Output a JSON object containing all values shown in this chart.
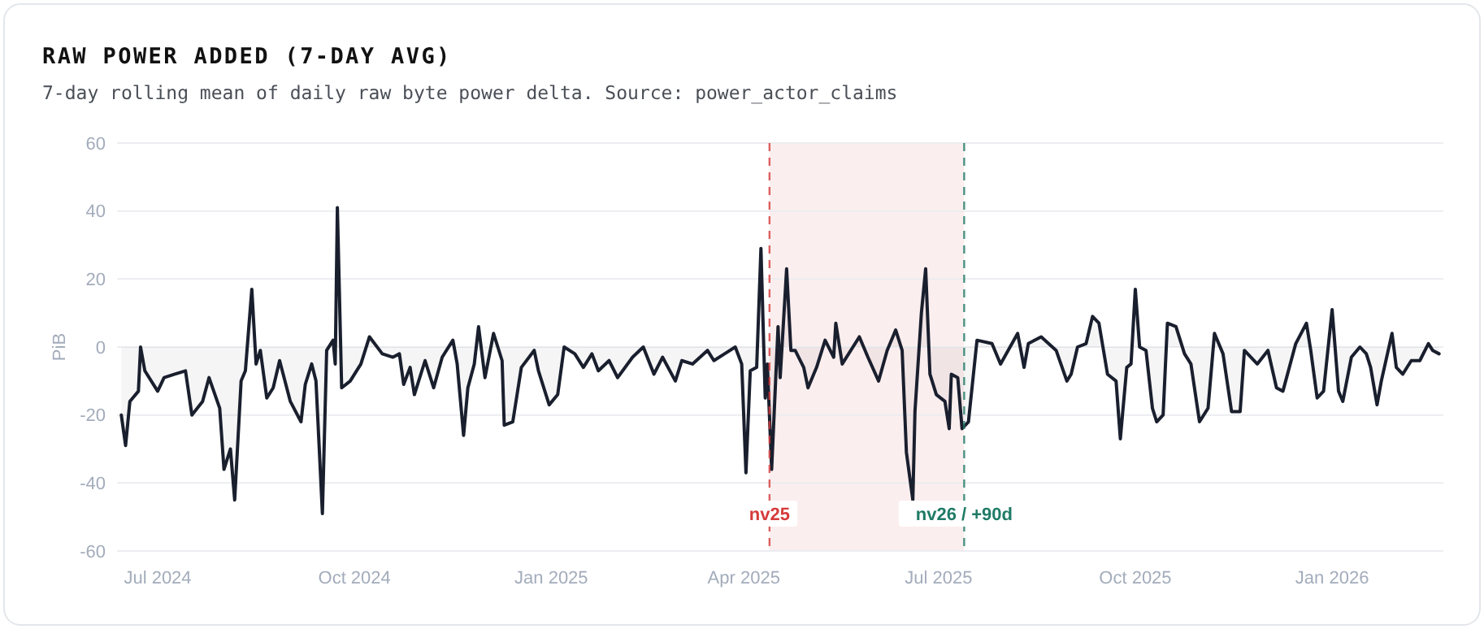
{
  "chart_data": {
    "type": "area",
    "title": "RAW POWER ADDED (7-DAY AVG)",
    "subtitle": "7-day rolling mean of daily raw byte power delta. Source: power_actor_claims",
    "ylabel": "PiB",
    "xlim": [
      "2024-06-12",
      "2026-02-22"
    ],
    "ylim": [
      -60,
      60
    ],
    "yticks": [
      -60,
      -40,
      -20,
      0,
      20,
      40,
      60
    ],
    "xticks": [
      {
        "value": "2024-07-01",
        "label": "Jul 2024"
      },
      {
        "value": "2024-10-01",
        "label": "Oct 2024"
      },
      {
        "value": "2025-01-01",
        "label": "Jan 2025"
      },
      {
        "value": "2025-04-01",
        "label": "Apr 2025"
      },
      {
        "value": "2025-07-01",
        "label": "Jul 2025"
      },
      {
        "value": "2025-10-01",
        "label": "Oct 2025"
      },
      {
        "value": "2026-01-01",
        "label": "Jan 2026"
      }
    ],
    "grid": "y",
    "bands": [
      {
        "axis": "x",
        "from": "2025-04-13",
        "to": "2025-07-13",
        "color": "#fbeeee"
      }
    ],
    "ref_lines": [
      {
        "axis": "x",
        "value": "2025-04-13",
        "label": "nv25",
        "color": "#d63b3b",
        "line_style": "dashed"
      },
      {
        "axis": "x",
        "value": "2025-07-13",
        "label": "nv26 / +90d",
        "color": "#1f7a66",
        "line_style": "dashed"
      }
    ],
    "series": [
      {
        "color": "#1a1f2e",
        "x": [
          "2024-06-14",
          "2024-06-16",
          "2024-06-18",
          "2024-06-22",
          "2024-06-23",
          "2024-06-25",
          "2024-07-01",
          "2024-07-04",
          "2024-07-09",
          "2024-07-14",
          "2024-07-17",
          "2024-07-22",
          "2024-07-25",
          "2024-07-30",
          "2024-08-01",
          "2024-08-04",
          "2024-08-06",
          "2024-08-09",
          "2024-08-11",
          "2024-08-14",
          "2024-08-16",
          "2024-08-18",
          "2024-08-21",
          "2024-08-24",
          "2024-08-27",
          "2024-09-01",
          "2024-09-06",
          "2024-09-08",
          "2024-09-11",
          "2024-09-13",
          "2024-09-16",
          "2024-09-18",
          "2024-09-21",
          "2024-09-22",
          "2024-09-23",
          "2024-09-25",
          "2024-09-29",
          "2024-10-04",
          "2024-10-08",
          "2024-10-14",
          "2024-10-19",
          "2024-10-22",
          "2024-10-24",
          "2024-10-27",
          "2024-10-29",
          "2024-11-03",
          "2024-11-07",
          "2024-11-11",
          "2024-11-16",
          "2024-11-18",
          "2024-11-21",
          "2024-11-23",
          "2024-11-26",
          "2024-11-28",
          "2024-12-01",
          "2024-12-05",
          "2024-12-09",
          "2024-12-10",
          "2024-12-14",
          "2024-12-18",
          "2024-12-24",
          "2024-12-26",
          "2024-12-31",
          "2025-01-04",
          "2025-01-07",
          "2025-01-12",
          "2025-01-16",
          "2025-01-20",
          "2025-01-23",
          "2025-01-28",
          "2025-02-01",
          "2025-02-08",
          "2025-02-13",
          "2025-02-18",
          "2025-02-22",
          "2025-02-28",
          "2025-03-03",
          "2025-03-08",
          "2025-03-15",
          "2025-03-18",
          "2025-03-23",
          "2025-03-28",
          "2025-03-31",
          "2025-04-02",
          "2025-04-04",
          "2025-04-07",
          "2025-04-09",
          "2025-04-11",
          "2025-04-12",
          "2025-04-14",
          "2025-04-17",
          "2025-04-18",
          "2025-04-21",
          "2025-04-23",
          "2025-04-25",
          "2025-04-29",
          "2025-05-01",
          "2025-05-05",
          "2025-05-09",
          "2025-05-13",
          "2025-05-14",
          "2025-05-17",
          "2025-05-25",
          "2025-05-29",
          "2025-06-03",
          "2025-06-07",
          "2025-06-11",
          "2025-06-14",
          "2025-06-16",
          "2025-06-19",
          "2025-06-20",
          "2025-06-23",
          "2025-06-25",
          "2025-06-27",
          "2025-06-30",
          "2025-07-04",
          "2025-07-06",
          "2025-07-07",
          "2025-07-10",
          "2025-07-12",
          "2025-07-15",
          "2025-07-19",
          "2025-07-26",
          "2025-07-30",
          "2025-08-07",
          "2025-08-10",
          "2025-08-12",
          "2025-08-18",
          "2025-08-25",
          "2025-08-30",
          "2025-09-01",
          "2025-09-04",
          "2025-09-08",
          "2025-09-11",
          "2025-09-14",
          "2025-09-18",
          "2025-09-22",
          "2025-09-24",
          "2025-09-27",
          "2025-09-29",
          "2025-10-01",
          "2025-10-03",
          "2025-10-06",
          "2025-10-09",
          "2025-10-11",
          "2025-10-14",
          "2025-10-16",
          "2025-10-20",
          "2025-10-24",
          "2025-10-27",
          "2025-10-31",
          "2025-11-04",
          "2025-11-07",
          "2025-11-11",
          "2025-11-15",
          "2025-11-19",
          "2025-11-21",
          "2025-11-27",
          "2025-12-02",
          "2025-12-06",
          "2025-12-09",
          "2025-12-15",
          "2025-12-20",
          "2025-12-22",
          "2025-12-25",
          "2025-12-28",
          "2026-01-01",
          "2026-01-04",
          "2026-01-06",
          "2026-01-10",
          "2026-01-14",
          "2026-01-17",
          "2026-01-19",
          "2026-01-22",
          "2026-01-24",
          "2026-01-29",
          "2026-01-31",
          "2026-02-03",
          "2026-02-07",
          "2026-02-11",
          "2026-02-15",
          "2026-02-17",
          "2026-02-20"
        ],
        "values": [
          -20,
          -29,
          -16,
          -13,
          0,
          -7,
          -13,
          -9,
          -8,
          -7,
          -20,
          -16,
          -9,
          -18,
          -36,
          -30,
          -45,
          -10,
          -7,
          17,
          -5,
          -1,
          -15,
          -12,
          -4,
          -16,
          -22,
          -11,
          -5,
          -10,
          -49,
          -1,
          2,
          -5,
          41,
          -12,
          -10,
          -5,
          3,
          -2,
          -3,
          -2,
          -11,
          -6,
          -14,
          -4,
          -12,
          -3,
          2,
          -5,
          -26,
          -12,
          -5,
          6,
          -9,
          4,
          -4,
          -23,
          -22,
          -6,
          -1,
          -7,
          -17,
          -14,
          0,
          -2,
          -6,
          -2,
          -7,
          -4,
          -9,
          -3,
          0,
          -8,
          -3,
          -10,
          -4,
          -5,
          -1,
          -4,
          -2,
          0,
          -5,
          -37,
          -7,
          -6,
          29,
          -15,
          -5,
          -36,
          6,
          -9,
          23,
          -1,
          -1,
          -6,
          -12,
          -6,
          2,
          -3,
          7,
          -5,
          3,
          -3,
          -10,
          -1,
          5,
          -1,
          -31,
          -45,
          -19,
          10,
          23,
          -8,
          -14,
          -16,
          -24,
          -8,
          -9,
          -24,
          -22,
          2,
          1,
          -5,
          4,
          -6,
          1,
          3,
          -1,
          -10,
          -8,
          0,
          1,
          9,
          7,
          -8,
          -10,
          -27,
          -6,
          -5,
          17,
          0,
          -1,
          -18,
          -22,
          -20,
          7,
          6,
          -2,
          -5,
          -22,
          -18,
          4,
          -2,
          -19,
          -19,
          -1,
          -5,
          -1,
          -12,
          -13,
          1,
          7,
          -1,
          -15,
          -13,
          11,
          -13,
          -16,
          -3,
          0,
          -2,
          -6,
          -17,
          -10,
          4,
          -6,
          -8,
          -4,
          -4,
          1,
          -1,
          -2
        ]
      }
    ]
  }
}
